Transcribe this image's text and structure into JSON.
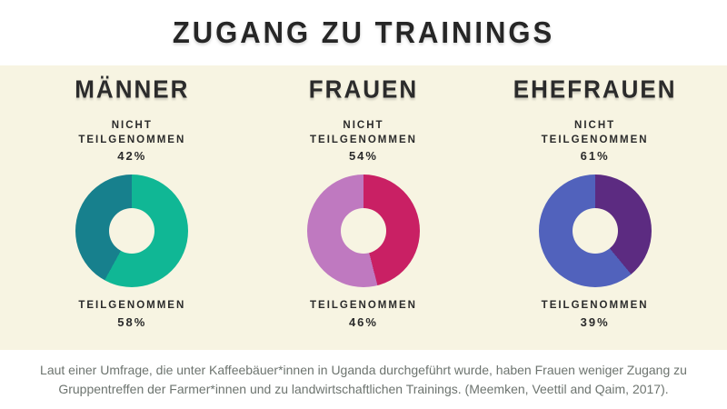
{
  "title": "ZUGANG ZU TRAININGS",
  "columns": [
    {
      "heading": "MÄNNER",
      "not_participated_label": "NICHT TEILGENOMMEN",
      "not_participated_value": "42%",
      "participated_label": "TEILGENOMMEN",
      "participated_value": "58%"
    },
    {
      "heading": "FRAUEN",
      "not_participated_label": "NICHT TEILGENOMMEN",
      "not_participated_value": "54%",
      "participated_label": "TEILGENOMMEN",
      "participated_value": "46%"
    },
    {
      "heading": "EHEFRAUEN",
      "not_participated_label": "NICHT TEILGENOMMEN",
      "not_participated_value": "61%",
      "participated_label": "TEILGENOMMEN",
      "participated_value": "39%"
    }
  ],
  "footer": {
    "text": "Laut einer Umfrage, die unter Kaffeebäuer*innen in Uganda durchgeführt wurde, haben Frauen weniger Zugang zu Gruppentreffen der Farmer*innen und zu landwirtschaftlichen Trainings. (Meemken, Veettil and Qaim, 2017)."
  },
  "colors": {
    "background_cream": "#f7f4e2",
    "band_white": "#ffffff",
    "text_dark": "#2b2b2b",
    "caption_gray": "#6d746f",
    "maenner_participated": "#10b795",
    "maenner_not_participated": "#17808d",
    "frauen_participated": "#c92064",
    "frauen_not_participated": "#bf79c0",
    "ehefrauen_participated": "#5c2b81",
    "ehefrauen_not_participated": "#5162bc"
  },
  "chart_data": [
    {
      "type": "pie",
      "variant": "donut",
      "title": "MÄNNER",
      "labels": [
        "TEILGENOMMEN",
        "NICHT TEILGENOMMEN"
      ],
      "values": [
        58,
        42
      ],
      "colors": [
        "#10b795",
        "#17808d"
      ],
      "start_angle_deg": 0,
      "direction": "clockwise"
    },
    {
      "type": "pie",
      "variant": "donut",
      "title": "FRAUEN",
      "labels": [
        "TEILGENOMMEN",
        "NICHT TEILGENOMMEN"
      ],
      "values": [
        46,
        54
      ],
      "colors": [
        "#c92064",
        "#bf79c0"
      ],
      "start_angle_deg": 0,
      "direction": "clockwise"
    },
    {
      "type": "pie",
      "variant": "donut",
      "title": "EHEFRAUEN",
      "labels": [
        "TEILGENOMMEN",
        "NICHT TEILGENOMMEN"
      ],
      "values": [
        39,
        61
      ],
      "colors": [
        "#5c2b81",
        "#5162bc"
      ],
      "start_angle_deg": 0,
      "direction": "clockwise"
    }
  ]
}
